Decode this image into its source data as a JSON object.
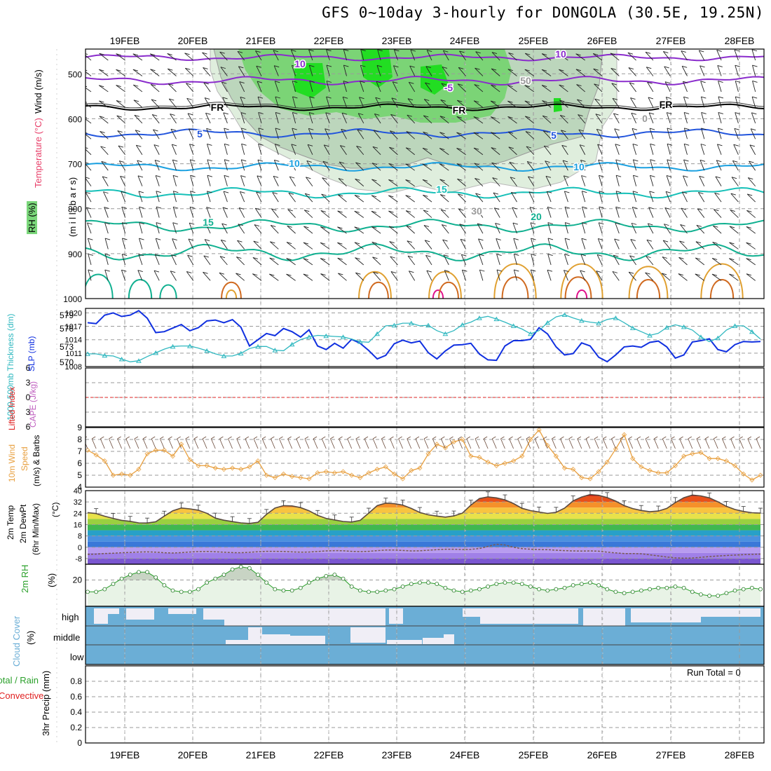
{
  "title": "GFS 0~10day 3-hourly for DONGOLA (30.5E, 19.25N)",
  "dates": [
    "19FEB",
    "20FEB",
    "21FEB",
    "22FEB",
    "23FEB",
    "24FEB",
    "25FEB",
    "26FEB",
    "27FEB",
    "28FEB"
  ],
  "colors": {
    "frame": "#000000",
    "grid": "#9a9a9a",
    "rh_light": "#dfeedd",
    "rh_mid": "#bcd6bc",
    "rh_green": "#70d46a",
    "rh_bright": "#22dd22",
    "temp_purple": "#8a2ccc",
    "temp_blue": "#2255dd",
    "temp_cyan": "#1aa0e0",
    "temp_teal": "#16c0b8",
    "temp_green": "#10b090",
    "warm_orange": "#e0a030",
    "warm_brown": "#d06a20",
    "warm_magenta": "#e0108a",
    "slp": "#1030e0",
    "thickness": "#30b8c0",
    "lifted": "#e02020",
    "cape": "#c060c0",
    "wind10": "#e8a040",
    "rh2m": "#2aa02a",
    "rh2m_fill": "#e8f3e6",
    "cloud": "#6baed6",
    "cloud_clear": "#f0eef6"
  },
  "panels": {
    "upper": {
      "ylabel_wind": "Wind (m/s)",
      "ylabel_temp": "Temperature (°C)",
      "ylabel_rh": "RH (%)",
      "ylabel_mb": "(m i l l i b a r s)",
      "yticks": [
        "500",
        "600",
        "700",
        "800",
        "900",
        "1000"
      ],
      "contour_labels": [
        {
          "text": "10",
          "color": "#8a2ccc"
        },
        {
          "text": "10",
          "color": "#8a2ccc"
        },
        {
          "text": "-5",
          "color": "#8a2ccc"
        },
        {
          "text": "FR",
          "color": "#000000"
        },
        {
          "text": "FR",
          "color": "#000000"
        },
        {
          "text": "FR",
          "color": "#000000"
        },
        {
          "text": "5",
          "color": "#2255dd"
        },
        {
          "text": "5",
          "color": "#2255dd"
        },
        {
          "text": "10",
          "color": "#1aa0e0"
        },
        {
          "text": "10",
          "color": "#1aa0e0"
        },
        {
          "text": "15",
          "color": "#16c0b8"
        },
        {
          "text": "15",
          "color": "#10b090"
        },
        {
          "text": "20",
          "color": "#10b090"
        },
        {
          "text": "50",
          "color": "#999999"
        },
        {
          "text": "30",
          "color": "#999999"
        },
        {
          "text": "0",
          "color": "#999999"
        }
      ]
    },
    "slp": {
      "ylabel_thk": "1000-500mb Thickness (dm)",
      "ylabel_slp": "SLP (mb)",
      "yticks_thk": [
        "579",
        "576",
        "573",
        "570"
      ],
      "yticks_slp": [
        "1020",
        "1017",
        "1014",
        "1011",
        "1008"
      ]
    },
    "cape": {
      "ylabel_li": "Lifted Index",
      "ylabel_cape": "CAPE (J/kg)",
      "yticks_left": [
        "6",
        "3",
        "0",
        "3",
        "6"
      ],
      "ytick_right": "9"
    },
    "wind10": {
      "ylabel1": "10m Wind",
      "ylabel2": "Speed",
      "ylabel3": "(m/s) & Barbs",
      "yticks": [
        "8",
        "7",
        "6",
        "5",
        "4"
      ]
    },
    "temp2m": {
      "ylabel1": "2m Temp",
      "ylabel2": "2m DewPt",
      "ylabel3": "(6hr Min/Max)",
      "ylabel4": "(°C)",
      "yticks": [
        "40",
        "32",
        "24",
        "16",
        "8",
        "0",
        "-8"
      ]
    },
    "rh2m": {
      "ylabel1": "2m RH",
      "ylabel2": "(%)",
      "yticks": [
        "20"
      ]
    },
    "cloud": {
      "ylabel1": "Cloud Cover",
      "ylabel2": "(%)",
      "levels": [
        "high",
        "middle",
        "low"
      ]
    },
    "precip": {
      "ylabel1": "Total / Rain",
      "ylabel2": "Convective",
      "ylabel3": "3hr Precip (mm)",
      "yticks": [
        "0.8",
        "0.6",
        "0.4",
        "0.2",
        "0"
      ],
      "run_total": "Run Total = 0"
    }
  },
  "chart_data": [
    {
      "type": "line",
      "name": "slp_thickness",
      "series": [
        {
          "name": "SLP (mb)",
          "axis": "right",
          "range": [
            1008,
            1021
          ],
          "values": [
            1017.8,
            1017.6,
            1019.5,
            1020,
            1019.2,
            1019.5,
            1020.5,
            1018.8,
            1015.6,
            1015.8,
            1016.6,
            1017.4,
            1016,
            1016.7,
            1018.2,
            1018.4,
            1017.8,
            1018.5,
            1016.8,
            1012.6,
            1014,
            1015.4,
            1014.9,
            1016.5,
            1015.8,
            1014.6,
            1016.2,
            1012.6,
            1011.8,
            1013.2,
            1012.1,
            1014.1,
            1013.2,
            1011.6,
            1009.7,
            1010.5,
            1013.1,
            1013.9,
            1013.3,
            1013.7,
            1011.1,
            1009.7,
            1011.5,
            1012.8,
            1012.9,
            1013.2,
            1010.8,
            1009.5,
            1009.4,
            1012.6,
            1013.8,
            1013.8,
            1014.1,
            1016.7,
            1015.3,
            1012.4,
            1010.6,
            1010.9,
            1013.3,
            1012.6,
            1010.1,
            1009.1,
            1010.6,
            1012.4,
            1012.6,
            1012.3,
            1013.4,
            1013.7,
            1012.4,
            1009.9,
            1010.6,
            1013.5,
            1013.8,
            1014.2,
            1011.8,
            1011.3,
            1012.9,
            1013.6,
            1013.5,
            1013.6
          ]
        },
        {
          "name": "1000-500mb Thickness (dm)",
          "axis": "left",
          "range": [
            569,
            580
          ],
          "values": [
            571.4,
            571.4,
            571.1,
            571.0,
            570.4,
            569.9,
            570.1,
            570.9,
            571.6,
            572.3,
            572.8,
            572.9,
            572.9,
            572.5,
            572.0,
            571.4,
            571.0,
            571.0,
            571.5,
            572.4,
            572.8,
            572.8,
            572.1,
            572.0,
            573.2,
            574.1,
            574.6,
            574.9,
            574.8,
            574.7,
            574.6,
            574.2,
            573.7,
            573.6,
            575.2,
            576.7,
            576.8,
            577.2,
            577.2,
            576.7,
            576.8,
            575.8,
            575.2,
            575.8,
            576.9,
            577.4,
            578.2,
            578.5,
            578.0,
            577.4,
            576.7,
            576.1,
            575.2,
            575.8,
            577.3,
            578.4,
            578.8,
            578.2,
            577.7,
            577.4,
            577.2,
            577.9,
            578.2,
            577.3,
            576.3,
            575.6,
            574.9,
            575.3,
            576.4,
            576.9,
            576.5,
            575.9,
            574.6,
            573.7,
            574.4,
            575.9,
            576.7,
            576.7,
            575.6,
            574.2
          ]
        }
      ]
    },
    {
      "type": "line",
      "name": "wind10m",
      "series": [
        {
          "name": "10m Wind Speed (m/s)",
          "range": [
            4,
            9
          ],
          "values": [
            7.1,
            6.7,
            6.2,
            5.0,
            5.1,
            5.0,
            5.5,
            6.8,
            7.1,
            7.1,
            6.6,
            7.6,
            6.3,
            5.8,
            5.8,
            5.6,
            5.5,
            5.6,
            5.5,
            5.7,
            6.2,
            5.0,
            4.8,
            5.1,
            4.9,
            4.8,
            4.7,
            5.2,
            5.3,
            5.2,
            5.3,
            5.0,
            4.8,
            5.2,
            5.5,
            5.7,
            5.1,
            4.7,
            5.4,
            5.6,
            6.8,
            7.6,
            7.3,
            7.8,
            8.0,
            6.6,
            6.5,
            6.1,
            5.8,
            6.0,
            6.2,
            6.6,
            8.0,
            8.8,
            7.5,
            6.6,
            5.6,
            5.5,
            4.8,
            4.7,
            5.3,
            6.1,
            7.2,
            8.4,
            6.4,
            5.7,
            5.4,
            5.2,
            5.2,
            5.8,
            6.6,
            6.8,
            6.9,
            6.4,
            6.4,
            6.2,
            5.8,
            5.1,
            4.6,
            5.0
          ]
        }
      ]
    },
    {
      "type": "area",
      "name": "temp2m",
      "series": [
        {
          "name": "2m Temp (°C)",
          "range": [
            -12,
            40
          ],
          "values": [
            24.5,
            23.8,
            21.9,
            20.4,
            19.0,
            18.3,
            17.2,
            17.1,
            18.0,
            22.0,
            25.8,
            27.7,
            27.1,
            26.2,
            24.0,
            20.6,
            19.1,
            18.1,
            17.2,
            16.8,
            17.6,
            23.2,
            27.7,
            29.4,
            29.2,
            28.0,
            25.8,
            22.5,
            20.4,
            19.3,
            18.2,
            17.8,
            19.0,
            24.1,
            29.4,
            31.2,
            30.8,
            29.8,
            27.4,
            24.6,
            22.9,
            22.0,
            21.3,
            22.1,
            24.1,
            29.8,
            34.4,
            35.6,
            34.9,
            33.5,
            30.9,
            27.5,
            25.9,
            24.9,
            23.9,
            24.7,
            27.6,
            32.8,
            35.5,
            37.3,
            36.7,
            35.1,
            32.6,
            29.4,
            27.3,
            26.0,
            25.1,
            25.6,
            27.4,
            31.6,
            35.0,
            36.9,
            36.3,
            34.9,
            32.2,
            28.9,
            26.7,
            25.3,
            24.4,
            24.1
          ]
        },
        {
          "name": "2m DewPt (°C)",
          "range": [
            -12,
            40
          ],
          "values": [
            -5.0,
            -4.8,
            -4.4,
            -4.2,
            -3.9,
            -3.7,
            -3.4,
            -3.3,
            -3.5,
            -3.9,
            -4.1,
            -3.8,
            -3.4,
            -3.1,
            -3.0,
            -3.2,
            -3.5,
            -3.8,
            -3.9,
            -3.6,
            -3.2,
            -2.9,
            -2.9,
            -3.0,
            -3.3,
            -3.5,
            -3.4,
            -3.0,
            -2.6,
            -2.4,
            -2.5,
            -2.9,
            -3.1,
            -2.9,
            -2.4,
            -2.0,
            -2.0,
            -2.3,
            -2.6,
            -2.5,
            -2.1,
            -1.7,
            -1.4,
            -1.4,
            -1.6,
            -1.5,
            -0.9,
            0.6,
            2.1,
            1.6,
            0.0,
            -1.0,
            -1.4,
            -1.6,
            -1.7,
            -2.1,
            -2.4,
            -2.6,
            -2.7,
            -2.6,
            -2.8,
            -3.5,
            -4.0,
            -4.4,
            -4.4,
            -4.6,
            -5.3,
            -6.1,
            -6.9,
            -7.5,
            -7.7,
            -7.6,
            -7.1,
            -6.6,
            -6.2,
            -5.8,
            -5.5,
            -5.2,
            -5.0,
            -4.8
          ]
        }
      ]
    },
    {
      "type": "area",
      "name": "rh2m",
      "series": [
        {
          "name": "2m RH (%)",
          "range": [
            0,
            32
          ],
          "values": [
            11,
            11,
            13,
            17,
            21,
            24,
            26,
            26,
            22,
            16,
            12,
            11,
            11,
            13,
            18,
            21,
            24,
            28,
            30,
            29,
            24,
            18,
            13,
            12,
            12,
            14,
            18,
            21,
            23,
            24,
            21,
            15,
            12,
            11,
            11,
            12,
            13,
            15,
            17,
            18,
            18,
            17,
            14,
            12,
            11,
            12,
            13,
            15,
            17,
            18,
            18,
            17,
            15,
            13,
            12,
            13,
            14,
            16,
            17,
            18,
            16,
            13,
            11,
            10,
            11,
            12,
            13,
            14,
            14,
            15,
            14,
            11,
            9,
            8,
            8,
            10,
            12,
            13,
            14,
            13
          ]
        }
      ]
    },
    {
      "type": "bar",
      "name": "precip3hr",
      "ylabel": "3hr Precip (mm)",
      "ylim": [
        0,
        1
      ],
      "values": []
    }
  ]
}
